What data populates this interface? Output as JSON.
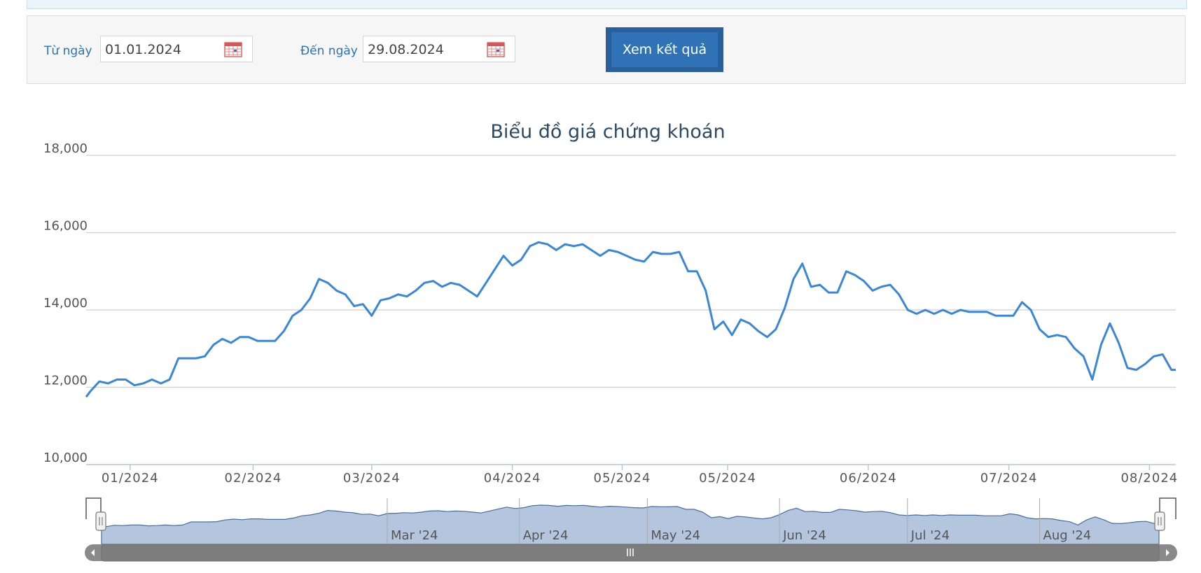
{
  "filter": {
    "from_label": "Từ ngày",
    "from_value": "01.01.2024",
    "to_label": "Đến ngày",
    "to_value": "29.08.2024",
    "submit_label": "Xem kết quả"
  },
  "icons": {
    "calendar": "calendar-icon",
    "scroll_left": "arrow-left-icon",
    "scroll_right": "arrow-right-icon",
    "handle": "grip-icon"
  },
  "colors": {
    "line": "#3a86d8",
    "navigator_fill": "#b3c6de",
    "navigator_line": "#4a6d9c",
    "button": "#2f73b6"
  },
  "chart_data": {
    "type": "line",
    "title": "Biểu đồ giá chứng khoán",
    "ylim": [
      10000,
      18000
    ],
    "y_ticks": [
      "10,000",
      "12,000",
      "14,000",
      "16,000",
      "18,000"
    ],
    "x_range": [
      "2023-12-25",
      "2024-08-29"
    ],
    "x_ticks": [
      {
        "label": "01/2024",
        "date": "2024-01-04"
      },
      {
        "label": "02/2024",
        "date": "2024-02-01"
      },
      {
        "label": "03/2024",
        "date": "2024-02-28"
      },
      {
        "label": "04/2024",
        "date": "2024-03-31"
      },
      {
        "label": "05/2024",
        "date": "2024-04-25"
      },
      {
        "label": "05/2024",
        "date": "2024-05-19"
      },
      {
        "label": "06/2024",
        "date": "2024-06-20"
      },
      {
        "label": "07/2024",
        "date": "2024-07-22"
      },
      {
        "label": "08/2024",
        "date": "2024-08-23"
      }
    ],
    "grid": true,
    "series": [
      {
        "values": [
          [
            "2023-12-25",
            11750
          ],
          [
            "2023-12-26",
            11900
          ],
          [
            "2023-12-28",
            12150
          ],
          [
            "2023-12-30",
            12100
          ],
          [
            "2024-01-01",
            12200
          ],
          [
            "2024-01-03",
            12200
          ],
          [
            "2024-01-05",
            12050
          ],
          [
            "2024-01-07",
            12100
          ],
          [
            "2024-01-09",
            12200
          ],
          [
            "2024-01-11",
            12100
          ],
          [
            "2024-01-13",
            12200
          ],
          [
            "2024-01-15",
            12750
          ],
          [
            "2024-01-17",
            12750
          ],
          [
            "2024-01-19",
            12750
          ],
          [
            "2024-01-21",
            12800
          ],
          [
            "2024-01-23",
            13100
          ],
          [
            "2024-01-25",
            13250
          ],
          [
            "2024-01-27",
            13150
          ],
          [
            "2024-01-29",
            13300
          ],
          [
            "2024-01-31",
            13300
          ],
          [
            "2024-02-02",
            13200
          ],
          [
            "2024-02-04",
            13200
          ],
          [
            "2024-02-06",
            13200
          ],
          [
            "2024-02-08",
            13450
          ],
          [
            "2024-02-10",
            13850
          ],
          [
            "2024-02-12",
            14000
          ],
          [
            "2024-02-14",
            14300
          ],
          [
            "2024-02-16",
            14800
          ],
          [
            "2024-02-18",
            14700
          ],
          [
            "2024-02-20",
            14500
          ],
          [
            "2024-02-22",
            14400
          ],
          [
            "2024-02-24",
            14100
          ],
          [
            "2024-02-26",
            14150
          ],
          [
            "2024-02-28",
            13850
          ],
          [
            "2024-03-01",
            14250
          ],
          [
            "2024-03-03",
            14300
          ],
          [
            "2024-03-05",
            14400
          ],
          [
            "2024-03-07",
            14350
          ],
          [
            "2024-03-09",
            14500
          ],
          [
            "2024-03-11",
            14700
          ],
          [
            "2024-03-13",
            14750
          ],
          [
            "2024-03-15",
            14600
          ],
          [
            "2024-03-17",
            14700
          ],
          [
            "2024-03-19",
            14650
          ],
          [
            "2024-03-21",
            14500
          ],
          [
            "2024-03-23",
            14350
          ],
          [
            "2024-03-25",
            14700
          ],
          [
            "2024-03-27",
            15050
          ],
          [
            "2024-03-29",
            15400
          ],
          [
            "2024-03-31",
            15150
          ],
          [
            "2024-04-02",
            15300
          ],
          [
            "2024-04-04",
            15650
          ],
          [
            "2024-04-06",
            15750
          ],
          [
            "2024-04-08",
            15700
          ],
          [
            "2024-04-10",
            15550
          ],
          [
            "2024-04-12",
            15700
          ],
          [
            "2024-04-14",
            15650
          ],
          [
            "2024-04-16",
            15700
          ],
          [
            "2024-04-18",
            15550
          ],
          [
            "2024-04-20",
            15400
          ],
          [
            "2024-04-22",
            15550
          ],
          [
            "2024-04-24",
            15500
          ],
          [
            "2024-04-26",
            15400
          ],
          [
            "2024-04-28",
            15300
          ],
          [
            "2024-04-30",
            15250
          ],
          [
            "2024-05-02",
            15500
          ],
          [
            "2024-05-04",
            15450
          ],
          [
            "2024-05-06",
            15450
          ],
          [
            "2024-05-08",
            15500
          ],
          [
            "2024-05-10",
            15000
          ],
          [
            "2024-05-12",
            15000
          ],
          [
            "2024-05-14",
            14500
          ],
          [
            "2024-05-16",
            13500
          ],
          [
            "2024-05-18",
            13700
          ],
          [
            "2024-05-20",
            13350
          ],
          [
            "2024-05-22",
            13750
          ],
          [
            "2024-05-24",
            13650
          ],
          [
            "2024-05-26",
            13450
          ],
          [
            "2024-05-28",
            13300
          ],
          [
            "2024-05-30",
            13500
          ],
          [
            "2024-06-01",
            14050
          ],
          [
            "2024-06-03",
            14800
          ],
          [
            "2024-06-05",
            15200
          ],
          [
            "2024-06-07",
            14600
          ],
          [
            "2024-06-09",
            14650
          ],
          [
            "2024-06-11",
            14450
          ],
          [
            "2024-06-13",
            14450
          ],
          [
            "2024-06-15",
            15000
          ],
          [
            "2024-06-17",
            14900
          ],
          [
            "2024-06-19",
            14750
          ],
          [
            "2024-06-21",
            14500
          ],
          [
            "2024-06-23",
            14600
          ],
          [
            "2024-06-25",
            14650
          ],
          [
            "2024-06-27",
            14400
          ],
          [
            "2024-06-29",
            14000
          ],
          [
            "2024-07-01",
            13900
          ],
          [
            "2024-07-03",
            14000
          ],
          [
            "2024-07-05",
            13900
          ],
          [
            "2024-07-07",
            14000
          ],
          [
            "2024-07-09",
            13900
          ],
          [
            "2024-07-11",
            14000
          ],
          [
            "2024-07-13",
            13950
          ],
          [
            "2024-07-15",
            13950
          ],
          [
            "2024-07-17",
            13950
          ],
          [
            "2024-07-19",
            13850
          ],
          [
            "2024-07-21",
            13850
          ],
          [
            "2024-07-23",
            13850
          ],
          [
            "2024-07-25",
            14200
          ],
          [
            "2024-07-27",
            14000
          ],
          [
            "2024-07-29",
            13500
          ],
          [
            "2024-07-31",
            13300
          ],
          [
            "2024-08-02",
            13350
          ],
          [
            "2024-08-04",
            13300
          ],
          [
            "2024-08-06",
            13000
          ],
          [
            "2024-08-08",
            12800
          ],
          [
            "2024-08-10",
            12200
          ],
          [
            "2024-08-12",
            13100
          ],
          [
            "2024-08-14",
            13650
          ],
          [
            "2024-08-16",
            13150
          ],
          [
            "2024-08-18",
            12500
          ],
          [
            "2024-08-20",
            12450
          ],
          [
            "2024-08-22",
            12600
          ],
          [
            "2024-08-24",
            12800
          ],
          [
            "2024-08-26",
            12850
          ],
          [
            "2024-08-28",
            12450
          ],
          [
            "2024-08-29",
            12450
          ]
        ]
      }
    ],
    "navigator": {
      "labels": [
        {
          "label": "Mar '24",
          "date": "2024-03-01"
        },
        {
          "label": "Apr '24",
          "date": "2024-04-01"
        },
        {
          "label": "May '24",
          "date": "2024-05-01"
        },
        {
          "label": "Jun '24",
          "date": "2024-06-01"
        },
        {
          "label": "Jul '24",
          "date": "2024-07-01"
        },
        {
          "label": "Aug '24",
          "date": "2024-08-01"
        }
      ]
    }
  }
}
